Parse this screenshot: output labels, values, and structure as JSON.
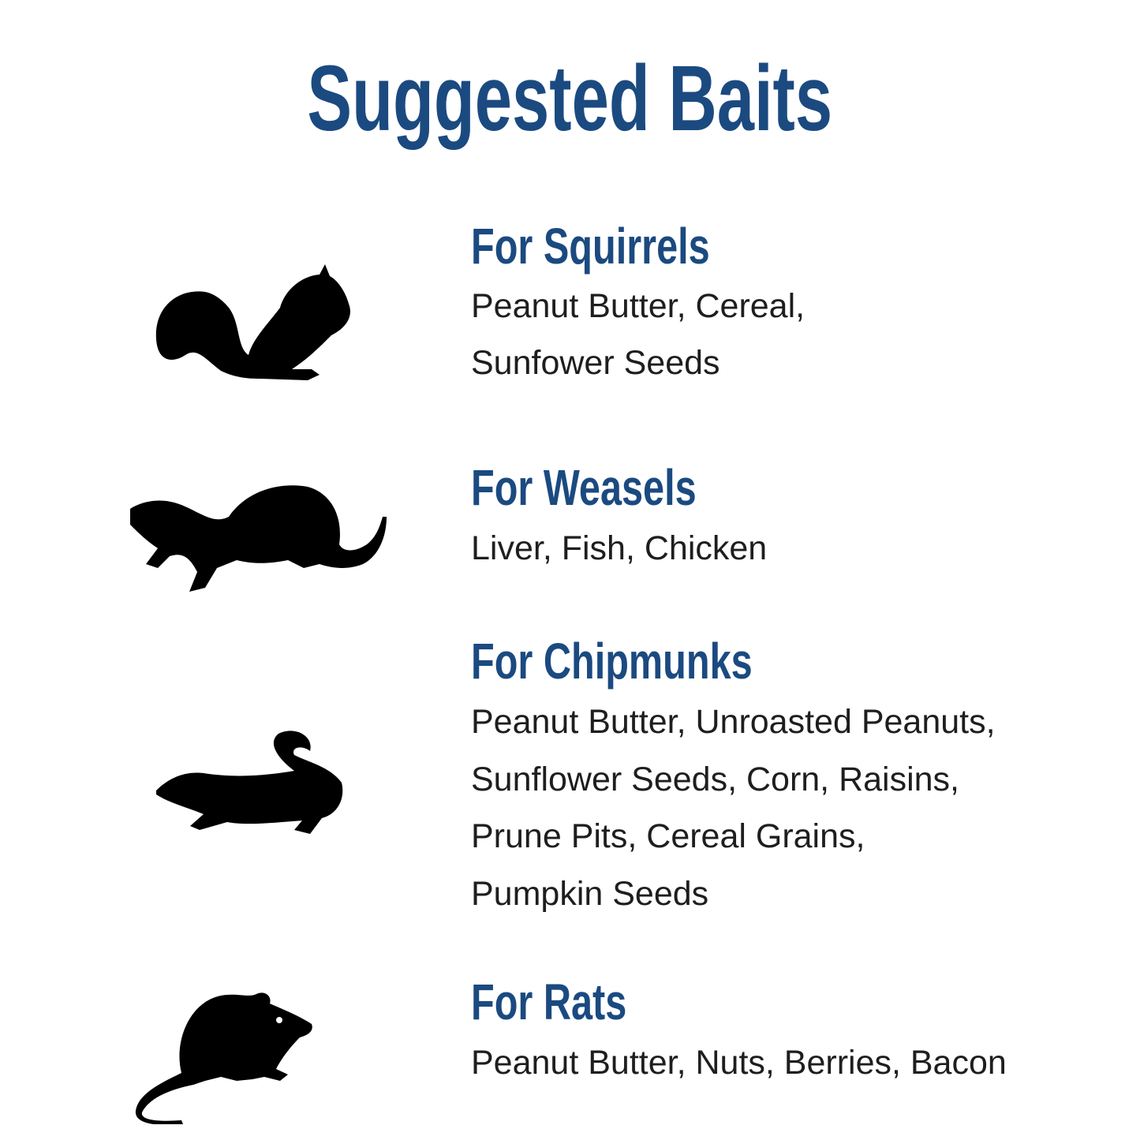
{
  "title": "Suggested Baits",
  "sections": [
    {
      "heading": "For Squirrels",
      "icon": "squirrel-icon",
      "lines": [
        "Peanut Butter, Cereal,",
        "Sunfower Seeds"
      ]
    },
    {
      "heading": "For Weasels",
      "icon": "weasel-icon",
      "lines": [
        "Liver, Fish, Chicken"
      ]
    },
    {
      "heading": "For Chipmunks",
      "icon": "chipmunk-icon",
      "lines": [
        "Peanut Butter, Unroasted Peanuts,",
        "Sunflower Seeds, Corn, Raisins,",
        "Prune Pits, Cereal Grains,",
        "Pumpkin Seeds"
      ]
    },
    {
      "heading": "For Rats",
      "icon": "rat-icon",
      "lines": [
        "Peanut Butter, Nuts, Berries, Bacon"
      ]
    }
  ],
  "colors": {
    "heading": "#1b4a80",
    "text": "#1e1e1e",
    "silhouette": "#000000"
  }
}
